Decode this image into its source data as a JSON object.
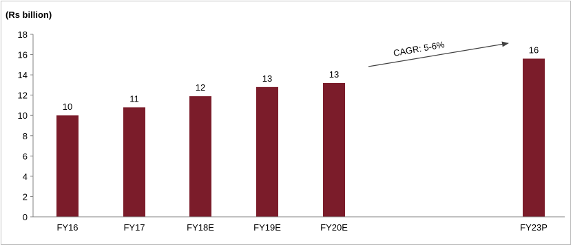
{
  "chart_data": {
    "type": "bar",
    "ylabel": "(Rs billion)",
    "ylim": [
      0,
      18
    ],
    "yticks": [
      0,
      2,
      4,
      6,
      8,
      10,
      12,
      14,
      16,
      18
    ],
    "categories": [
      "FY16",
      "FY17",
      "FY18E",
      "FY19E",
      "FY20E",
      "FY23P"
    ],
    "values": [
      10,
      10.8,
      11.9,
      12.8,
      13.2,
      15.6
    ],
    "data_labels": [
      "10",
      "11",
      "12",
      "13",
      "13",
      "16"
    ],
    "bar_color": "#7b1c2a",
    "grid": false,
    "annotation": {
      "text": "CAGR: 5-6%",
      "from_category": "FY20E",
      "to_category": "FY23P"
    }
  }
}
